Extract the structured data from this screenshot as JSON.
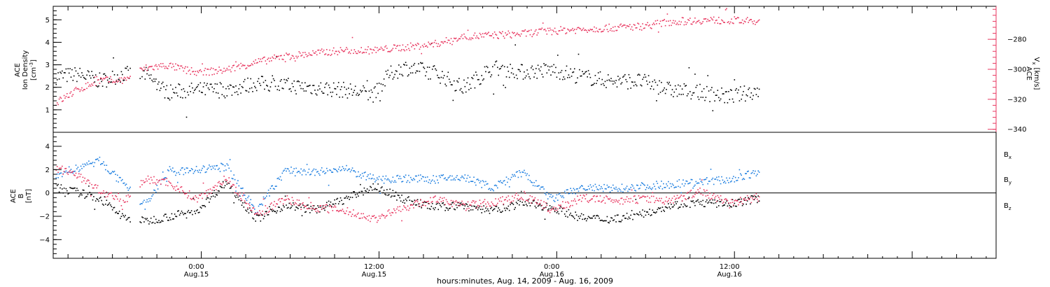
{
  "figure": {
    "xlabel": "hours:minutes, Aug. 14, 2009 - Aug. 16, 2009",
    "x_ticks": [
      {
        "time": "2009-08-15 00:00",
        "label": "0:00",
        "sublabel": "Aug.15"
      },
      {
        "time": "2009-08-15 12:00",
        "label": "12:00",
        "sublabel": "Aug.15"
      },
      {
        "time": "2009-08-16 00:00",
        "label": "0:00",
        "sublabel": "Aug.16"
      },
      {
        "time": "2009-08-16 12:00",
        "label": "12:00",
        "sublabel": "Aug.16"
      }
    ],
    "xlim": [
      "2009-08-14 14:20",
      "2009-08-17 06:00"
    ]
  },
  "colors": {
    "black": "#000000",
    "blue": "#1e7fe0",
    "red": "#e8365f"
  },
  "chart_data": [
    {
      "type": "scatter",
      "title": "",
      "ylabel": [
        "ACE",
        "Ion Density",
        "[cm",
        "-3",
        "]"
      ],
      "ylim": [
        0,
        5.6
      ],
      "yticks": [
        1,
        2,
        3,
        4,
        5
      ],
      "ylabel_right": [
        "V",
        "x",
        "ACE",
        "[km/s]"
      ],
      "ylim_right": [
        -342,
        -258
      ],
      "yticks_right": [
        -340,
        -320,
        -300,
        -280
      ],
      "data_gap": [
        "2009-08-14 19:30",
        "2009-08-14 20:10"
      ],
      "series": [
        {
          "axis": "left",
          "color": "black",
          "points": [
            [
              "2009-08-14 14:30",
              2.5
            ],
            [
              "2009-08-14 16:00",
              2.6
            ],
            [
              "2009-08-14 17:30",
              2.3
            ],
            [
              "2009-08-14 19:00",
              2.6
            ],
            [
              "2009-08-14 20:30",
              2.6
            ],
            [
              "2009-08-14 22:00",
              1.8
            ],
            [
              "2009-08-15 00:00",
              1.9
            ],
            [
              "2009-08-15 02:00",
              1.9
            ],
            [
              "2009-08-15 04:00",
              2.2
            ],
            [
              "2009-08-15 06:00",
              2.1
            ],
            [
              "2009-08-15 08:00",
              2.0
            ],
            [
              "2009-08-15 10:00",
              1.9
            ],
            [
              "2009-08-15 12:00",
              1.7
            ],
            [
              "2009-08-15 13:00",
              2.6
            ],
            [
              "2009-08-15 14:00",
              2.9
            ],
            [
              "2009-08-15 16:00",
              2.7
            ],
            [
              "2009-08-15 18:00",
              2.0
            ],
            [
              "2009-08-15 20:00",
              2.9
            ],
            [
              "2009-08-15 22:00",
              2.7
            ],
            [
              "2009-08-16 00:00",
              2.8
            ],
            [
              "2009-08-16 02:00",
              2.5
            ],
            [
              "2009-08-16 04:00",
              2.3
            ],
            [
              "2009-08-16 06:00",
              2.3
            ],
            [
              "2009-08-16 08:00",
              1.9
            ],
            [
              "2009-08-16 10:00",
              1.8
            ],
            [
              "2009-08-16 12:00",
              1.6
            ],
            [
              "2009-08-16 14:00",
              1.9
            ]
          ]
        },
        {
          "axis": "right",
          "color": "red",
          "points": [
            [
              "2009-08-14 14:30",
              -322
            ],
            [
              "2009-08-14 16:00",
              -313
            ],
            [
              "2009-08-14 17:30",
              -307
            ],
            [
              "2009-08-14 19:00",
              -307
            ],
            [
              "2009-08-14 20:30",
              -299
            ],
            [
              "2009-08-14 22:00",
              -297
            ],
            [
              "2009-08-15 00:00",
              -302
            ],
            [
              "2009-08-15 02:00",
              -300
            ],
            [
              "2009-08-15 04:00",
              -295
            ],
            [
              "2009-08-15 06:00",
              -291
            ],
            [
              "2009-08-15 08:00",
              -289
            ],
            [
              "2009-08-15 10:00",
              -287
            ],
            [
              "2009-08-15 12:00",
              -287
            ],
            [
              "2009-08-15 14:00",
              -285
            ],
            [
              "2009-08-15 16:00",
              -283
            ],
            [
              "2009-08-15 18:00",
              -278
            ],
            [
              "2009-08-15 20:00",
              -277
            ],
            [
              "2009-08-15 22:00",
              -276
            ],
            [
              "2009-08-16 00:00",
              -274
            ],
            [
              "2009-08-16 02:00",
              -273
            ],
            [
              "2009-08-16 04:00",
              -272
            ],
            [
              "2009-08-16 06:00",
              -271
            ],
            [
              "2009-08-16 08:00",
              -268
            ],
            [
              "2009-08-16 10:00",
              -267
            ],
            [
              "2009-08-16 12:00",
              -267
            ],
            [
              "2009-08-16 14:00",
              -268
            ]
          ]
        }
      ]
    },
    {
      "type": "scatter",
      "title": "",
      "ylabel": [
        "ACE",
        "B",
        "[nT]"
      ],
      "ylim": [
        -5.6,
        5.2
      ],
      "yticks": [
        -4,
        -2,
        0,
        2,
        4
      ],
      "zero_line": true,
      "data_gap": [
        "2009-08-14 19:30",
        "2009-08-14 20:10"
      ],
      "legend": [
        {
          "name": "B",
          "sub": "x",
          "color": "black"
        },
        {
          "name": "B",
          "sub": "y",
          "color": "blue"
        },
        {
          "name": "B",
          "sub": "z",
          "color": "red"
        }
      ],
      "series": [
        {
          "name": "Bx",
          "color": "black",
          "points": [
            [
              "2009-08-14 14:30",
              0.5
            ],
            [
              "2009-08-14 16:00",
              0.1
            ],
            [
              "2009-08-14 17:30",
              -0.5
            ],
            [
              "2009-08-14 19:00",
              -2.0
            ],
            [
              "2009-08-14 20:30",
              -2.4
            ],
            [
              "2009-08-14 22:00",
              -2.0
            ],
            [
              "2009-08-15 00:00",
              -1.5
            ],
            [
              "2009-08-15 02:00",
              1.0
            ],
            [
              "2009-08-15 04:00",
              -2.2
            ],
            [
              "2009-08-15 06:00",
              -1.0
            ],
            [
              "2009-08-15 08:00",
              -1.4
            ],
            [
              "2009-08-15 10:00",
              -0.5
            ],
            [
              "2009-08-15 12:00",
              0.6
            ],
            [
              "2009-08-15 14:00",
              -0.5
            ],
            [
              "2009-08-15 16:00",
              -1.2
            ],
            [
              "2009-08-15 18:00",
              -1.0
            ],
            [
              "2009-08-15 20:00",
              -1.5
            ],
            [
              "2009-08-15 22:00",
              -0.8
            ],
            [
              "2009-08-16 00:00",
              -1.2
            ],
            [
              "2009-08-16 02:00",
              -2.1
            ],
            [
              "2009-08-16 04:00",
              -2.2
            ],
            [
              "2009-08-16 06:00",
              -1.8
            ],
            [
              "2009-08-16 08:00",
              -1.0
            ],
            [
              "2009-08-16 10:00",
              -0.8
            ],
            [
              "2009-08-16 12:00",
              -0.9
            ],
            [
              "2009-08-16 14:00",
              -0.4
            ]
          ]
        },
        {
          "name": "By",
          "color": "blue",
          "points": [
            [
              "2009-08-14 14:30",
              1.6
            ],
            [
              "2009-08-14 16:00",
              2.2
            ],
            [
              "2009-08-14 17:30",
              2.8
            ],
            [
              "2009-08-14 19:00",
              0.8
            ],
            [
              "2009-08-14 20:30",
              -1.0
            ],
            [
              "2009-08-14 22:00",
              1.8
            ],
            [
              "2009-08-15 00:00",
              2.0
            ],
            [
              "2009-08-15 02:00",
              2.3
            ],
            [
              "2009-08-15 04:00",
              -1.5
            ],
            [
              "2009-08-15 06:00",
              2.0
            ],
            [
              "2009-08-15 08:00",
              1.8
            ],
            [
              "2009-08-15 10:00",
              2.1
            ],
            [
              "2009-08-15 12:00",
              1.2
            ],
            [
              "2009-08-15 14:00",
              1.3
            ],
            [
              "2009-08-15 16:00",
              1.2
            ],
            [
              "2009-08-15 18:00",
              1.4
            ],
            [
              "2009-08-15 20:00",
              0.5
            ],
            [
              "2009-08-15 22:00",
              1.8
            ],
            [
              "2009-08-16 00:00",
              -0.5
            ],
            [
              "2009-08-16 02:00",
              0.5
            ],
            [
              "2009-08-16 04:00",
              0.4
            ],
            [
              "2009-08-16 06:00",
              0.6
            ],
            [
              "2009-08-16 08:00",
              0.8
            ],
            [
              "2009-08-16 10:00",
              1.0
            ],
            [
              "2009-08-16 12:00",
              1.2
            ],
            [
              "2009-08-16 14:00",
              1.8
            ]
          ]
        },
        {
          "name": "Bz",
          "color": "red",
          "points": [
            [
              "2009-08-14 14:30",
              2.2
            ],
            [
              "2009-08-14 16:00",
              1.5
            ],
            [
              "2009-08-14 17:30",
              0.2
            ],
            [
              "2009-08-14 19:00",
              -0.8
            ],
            [
              "2009-08-14 20:30",
              1.2
            ],
            [
              "2009-08-14 22:00",
              1.0
            ],
            [
              "2009-08-15 00:00",
              -0.5
            ],
            [
              "2009-08-15 02:00",
              1.3
            ],
            [
              "2009-08-15 04:00",
              -1.8
            ],
            [
              "2009-08-15 06:00",
              -0.5
            ],
            [
              "2009-08-15 08:00",
              -1.2
            ],
            [
              "2009-08-15 10:00",
              -1.5
            ],
            [
              "2009-08-15 12:00",
              -2.2
            ],
            [
              "2009-08-15 14:00",
              -1.2
            ],
            [
              "2009-08-15 16:00",
              -0.5
            ],
            [
              "2009-08-15 18:00",
              -1.0
            ],
            [
              "2009-08-15 20:00",
              -0.8
            ],
            [
              "2009-08-15 22:00",
              -0.2
            ],
            [
              "2009-08-16 00:00",
              -1.4
            ],
            [
              "2009-08-16 02:00",
              -0.4
            ],
            [
              "2009-08-16 04:00",
              -0.6
            ],
            [
              "2009-08-16 06:00",
              -0.5
            ],
            [
              "2009-08-16 08:00",
              -0.6
            ],
            [
              "2009-08-16 10:00",
              0.2
            ],
            [
              "2009-08-16 12:00",
              -0.8
            ],
            [
              "2009-08-16 14:00",
              -0.3
            ]
          ]
        }
      ]
    }
  ]
}
